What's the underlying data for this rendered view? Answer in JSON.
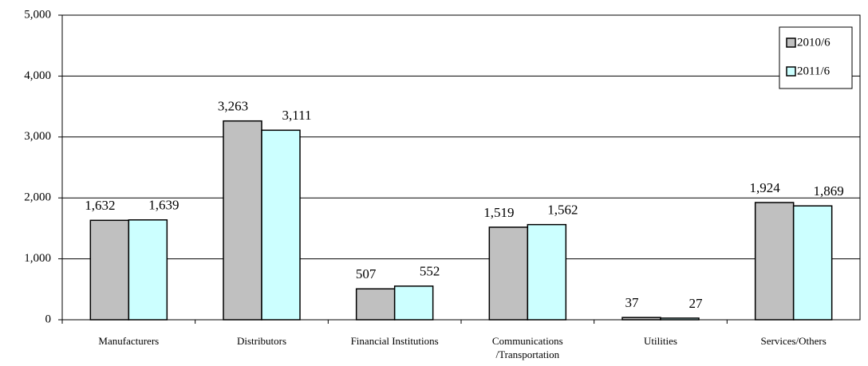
{
  "chart_data": {
    "type": "bar",
    "categories": [
      "Manufacturers",
      "Distributors",
      "Financial Institutions",
      "Communications\n/Transportation",
      "Utilities",
      "Services/Others"
    ],
    "series": [
      {
        "name": "2010/6",
        "color": "#c0c0c0",
        "values": [
          1632,
          3263,
          507,
          1519,
          37,
          1924
        ],
        "value_labels": [
          "1,632",
          "3,263",
          "507",
          "1,519",
          "37",
          "1,924"
        ]
      },
      {
        "name": "2011/6",
        "color": "#ccffff",
        "values": [
          1639,
          3111,
          552,
          1562,
          27,
          1869
        ],
        "value_labels": [
          "1,639",
          "3,111",
          "552",
          "1,562",
          "27",
          "1,869"
        ]
      }
    ],
    "ylim": [
      0,
      5000
    ],
    "yticks": [
      0,
      {
        "value": 1000,
        "label": "1,000"
      },
      {
        "value": 2000,
        "label": "2,000"
      },
      {
        "value": 3000,
        "label": "3,000"
      },
      {
        "value": 4000,
        "label": "4,000"
      },
      {
        "value": 5000,
        "label": "5,000"
      }
    ],
    "grid": true,
    "legend": "upper right"
  }
}
